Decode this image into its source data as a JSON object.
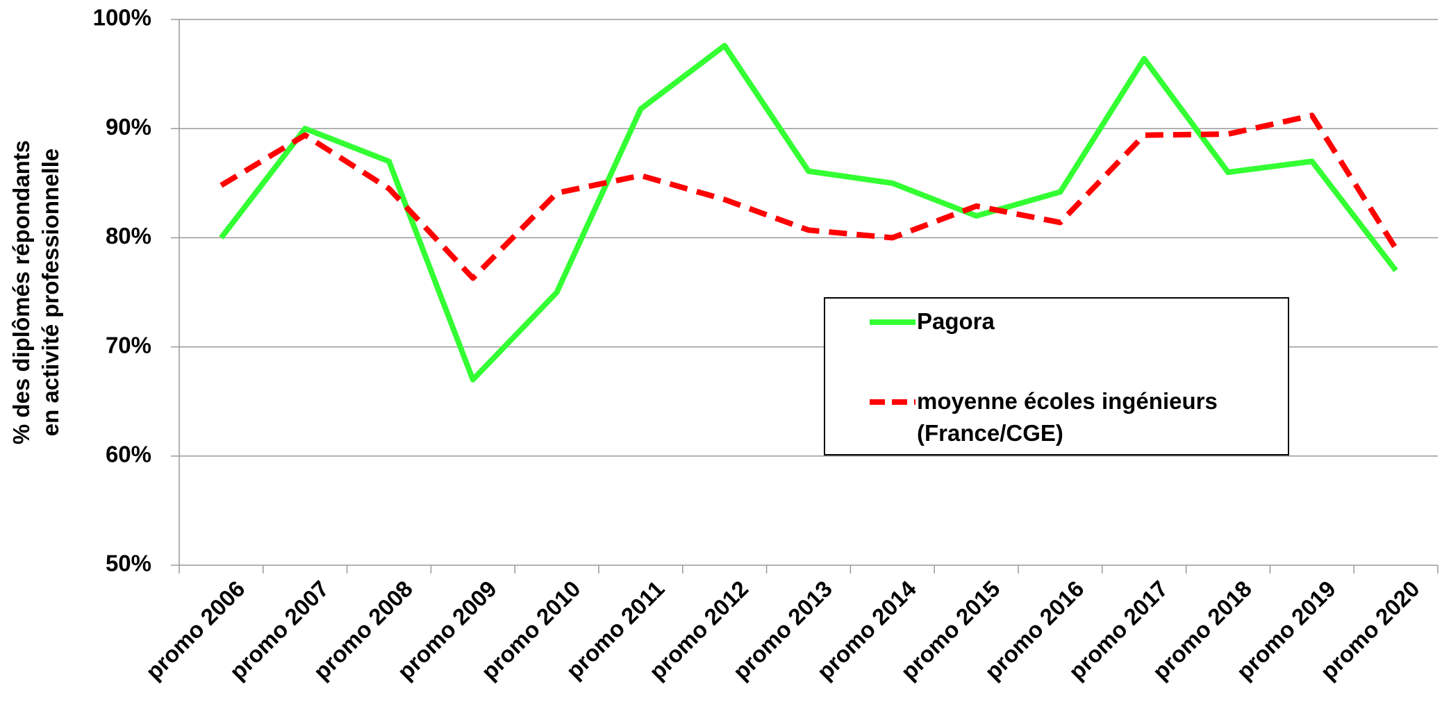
{
  "chart_data": {
    "type": "line",
    "ylabel": [
      "% des diplômés répondants",
      "en activité professionnelle"
    ],
    "categories": [
      "promo 2006",
      "promo 2007",
      "promo 2008",
      "promo 2009",
      "promo 2010",
      "promo 2011",
      "promo 2012",
      "promo 2013",
      "promo 2014",
      "promo 2015",
      "promo 2016",
      "promo 2017",
      "promo 2018",
      "promo 2019",
      "promo 2020"
    ],
    "series": [
      {
        "name": "Pagora",
        "color": "#33ff33",
        "dash": false,
        "values": [
          80,
          90,
          87,
          67,
          75,
          91.8,
          97.6,
          86.1,
          85,
          82,
          84.2,
          96.4,
          86,
          87,
          77
        ]
      },
      {
        "name": "moyenne écoles ingénieurs (France/CGE)",
        "color": "#ff0000",
        "dash": true,
        "values": [
          84.8,
          89.4,
          84.5,
          76.3,
          84.1,
          85.7,
          83.5,
          80.7,
          80,
          82.9,
          81.4,
          89.4,
          89.5,
          91.2,
          79
        ]
      }
    ],
    "ylim": [
      50,
      100
    ],
    "yticks": [
      {
        "value": 50,
        "label": "50%"
      },
      {
        "value": 60,
        "label": "60%"
      },
      {
        "value": 70,
        "label": "70%"
      },
      {
        "value": 80,
        "label": "80%"
      },
      {
        "value": 90,
        "label": "90%"
      },
      {
        "value": 100,
        "label": "100%"
      }
    ],
    "grid": true
  }
}
